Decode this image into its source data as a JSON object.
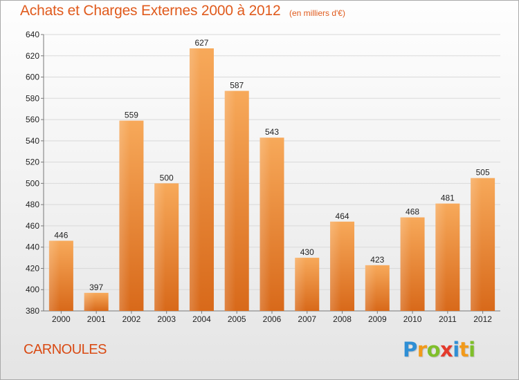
{
  "title": "Achats et Charges Externes 2000 à 2012",
  "subtitle": "(en milliers d'€)",
  "town": "CARNOULES",
  "logo": {
    "letters": [
      "P",
      "r",
      "o",
      "x",
      "i",
      "t",
      "i"
    ],
    "colors": [
      "#2f8fd5",
      "#f29a1a",
      "#7fbf2a",
      "#e43a2c",
      "#2f8fd5",
      "#f29a1a",
      "#7fbf2a"
    ]
  },
  "chart_data": {
    "type": "bar",
    "title": "Achats et Charges Externes 2000 à 2012",
    "subtitle": "(en milliers d'€)",
    "categories": [
      "2000",
      "2001",
      "2002",
      "2003",
      "2004",
      "2005",
      "2006",
      "2007",
      "2008",
      "2009",
      "2010",
      "2011",
      "2012"
    ],
    "values": [
      446,
      397,
      559,
      500,
      627,
      587,
      543,
      430,
      464,
      423,
      468,
      481,
      505
    ],
    "ylim": [
      380,
      640
    ],
    "yticks": [
      380,
      400,
      420,
      440,
      460,
      480,
      500,
      520,
      540,
      560,
      580,
      600,
      620,
      640
    ],
    "grid": true,
    "data_labels": true,
    "bar_color": "#ee8f3e"
  }
}
